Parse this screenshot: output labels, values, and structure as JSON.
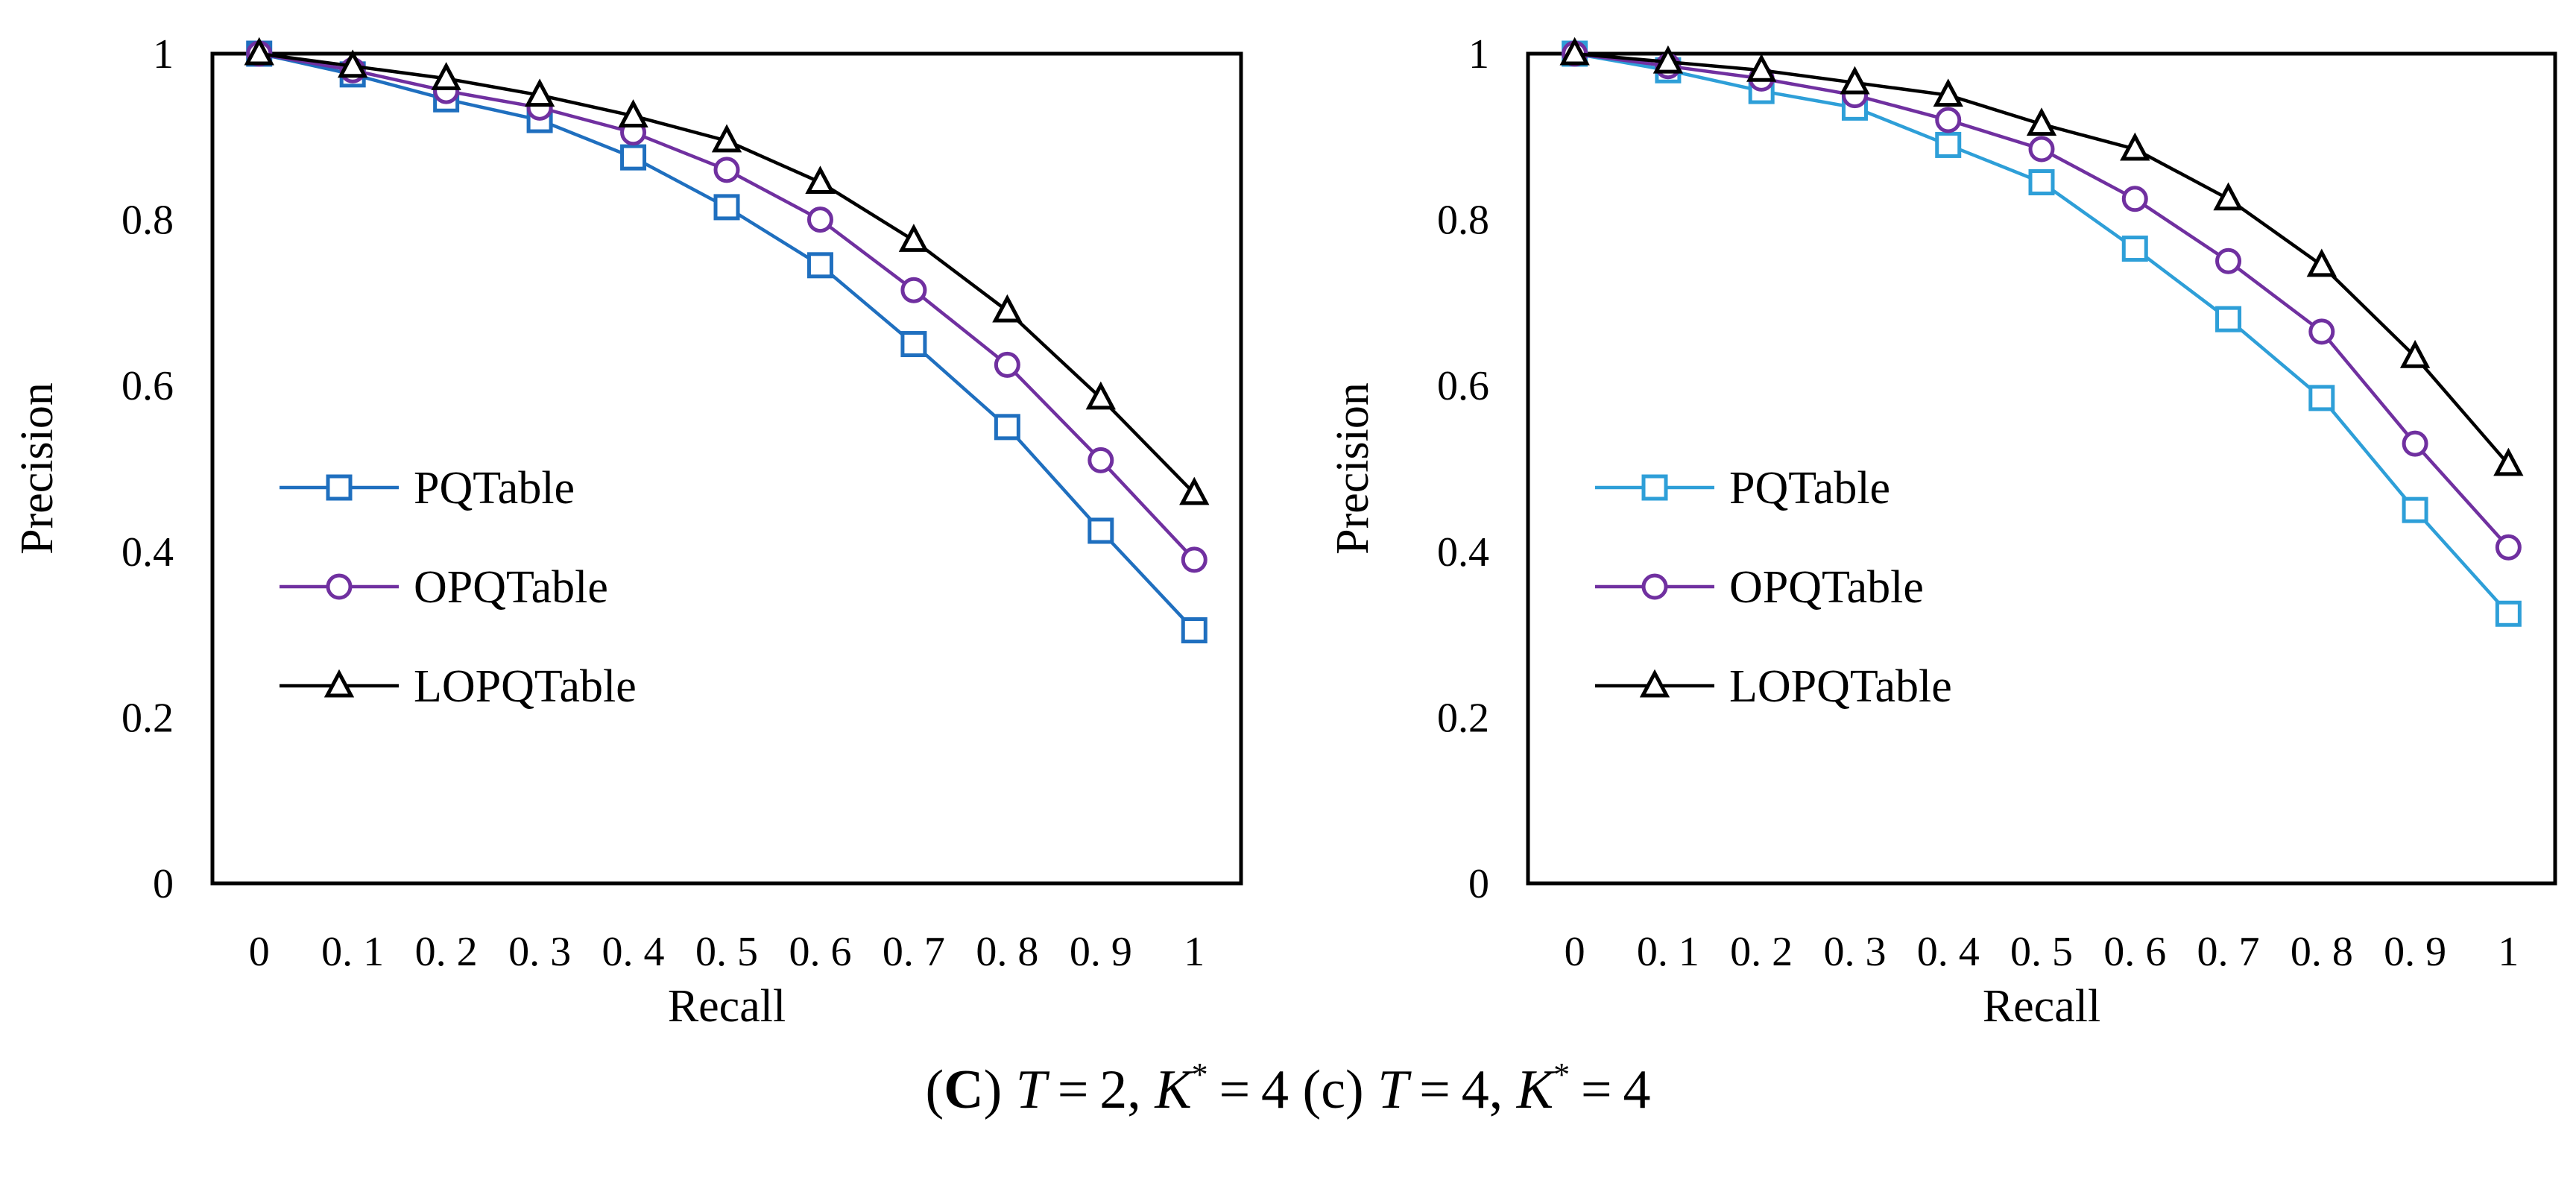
{
  "chart_data": [
    {
      "type": "line",
      "title": "",
      "xlabel": "Recall",
      "ylabel": "Precision",
      "categories": [
        "0",
        "0. 1",
        "0. 2",
        "0. 3",
        "0. 4",
        "0. 5",
        "0. 6",
        "0. 7",
        "0. 8",
        "0. 9",
        "1"
      ],
      "yticks": [
        "0",
        "0.2",
        "0.4",
        "0.6",
        "0.8",
        "1"
      ],
      "ylim": [
        0,
        1
      ],
      "grid": false,
      "legend_position": "left-middle",
      "series": [
        {
          "name": "PQTable",
          "marker": "square",
          "color": "#1f6fbf",
          "values": [
            1.0,
            0.975,
            0.945,
            0.92,
            0.875,
            0.815,
            0.745,
            0.65,
            0.55,
            0.425,
            0.305
          ]
        },
        {
          "name": "OPQTable",
          "marker": "circle",
          "color": "#7030a0",
          "values": [
            1.0,
            0.98,
            0.955,
            0.935,
            0.905,
            0.86,
            0.8,
            0.715,
            0.625,
            0.51,
            0.39
          ]
        },
        {
          "name": "LOPQTable",
          "marker": "triangle",
          "color": "#000000",
          "values": [
            1.0,
            0.985,
            0.97,
            0.95,
            0.925,
            0.895,
            0.845,
            0.775,
            0.69,
            0.585,
            0.47
          ]
        }
      ]
    },
    {
      "type": "line",
      "title": "",
      "xlabel": "Recall",
      "ylabel": "Precision",
      "categories": [
        "0",
        "0. 1",
        "0. 2",
        "0. 3",
        "0. 4",
        "0. 5",
        "0. 6",
        "0. 7",
        "0. 8",
        "0. 9",
        "1"
      ],
      "yticks": [
        "0",
        "0.2",
        "0.4",
        "0.6",
        "0.8",
        "1"
      ],
      "ylim": [
        0,
        1
      ],
      "grid": false,
      "legend_position": "left-middle",
      "series": [
        {
          "name": "PQTable",
          "marker": "square",
          "color": "#2e9fd8",
          "values": [
            1.0,
            0.98,
            0.955,
            0.935,
            0.89,
            0.845,
            0.765,
            0.68,
            0.585,
            0.45,
            0.325
          ]
        },
        {
          "name": "OPQTable",
          "marker": "circle",
          "color": "#7030a0",
          "values": [
            1.0,
            0.985,
            0.97,
            0.95,
            0.92,
            0.885,
            0.825,
            0.75,
            0.665,
            0.53,
            0.405
          ]
        },
        {
          "name": "LOPQTable",
          "marker": "triangle",
          "color": "#000000",
          "values": [
            1.0,
            0.99,
            0.98,
            0.965,
            0.95,
            0.915,
            0.885,
            0.825,
            0.745,
            0.635,
            0.505
          ]
        }
      ]
    }
  ],
  "caption": {
    "letter_a": "C",
    "part_a": "T = 2, K* = 4",
    "letter_b": "c",
    "part_b": "T = 4, K* = 4"
  }
}
